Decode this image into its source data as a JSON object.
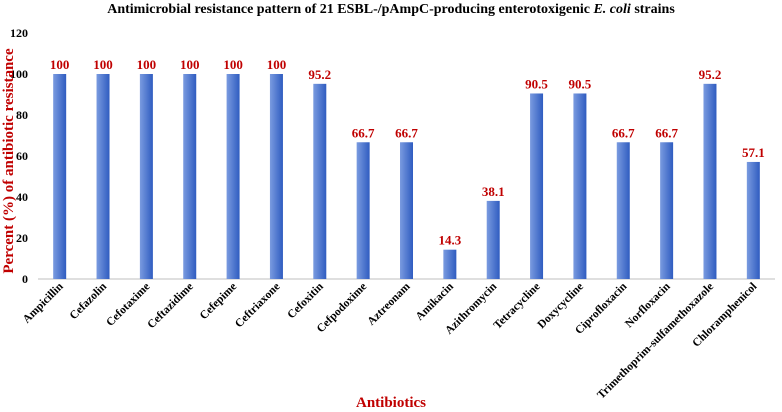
{
  "chart_data": {
    "type": "bar",
    "title_main": "Antimicrobial resistance pattern of 21 ESBL-/pAmpC-producing enterotoxigenic ",
    "title_italic": "E. coli",
    "title_end": " strains",
    "xlabel": "Antibiotics",
    "ylabel": "Percent (%) of antibiotic resistance",
    "ylim": [
      0,
      120
    ],
    "yticks": [
      0,
      20,
      40,
      60,
      80,
      100,
      120
    ],
    "categories": [
      "Ampicillin",
      "Cefazolin",
      "Cefotaxime",
      "Ceftazidime",
      "Cefepime",
      "Ceftriaxone",
      "Cefoxitin",
      "Cefpodoxime",
      "Aztreonam",
      "Amikacin",
      "Azithromycin",
      "Tetracycline",
      "Doxycycline",
      "Ciprofloxacin",
      "Norfloxacin",
      "Trimethoprim-sulfamethoxazole",
      "Chloramphenicol"
    ],
    "values": [
      100,
      100,
      100,
      100,
      100,
      100,
      95.2,
      66.7,
      66.7,
      14.3,
      38.1,
      90.5,
      90.5,
      66.7,
      66.7,
      95.2,
      57.1
    ],
    "data_labels": [
      "100",
      "100",
      "100",
      "100",
      "100",
      "100",
      "95.2",
      "66.7",
      "66.7",
      "14.3",
      "38.1",
      "90.5",
      "90.5",
      "66.7",
      "66.7",
      "95.2",
      "57.1"
    ],
    "grid": false,
    "legend": "none",
    "colors": {
      "bar_light": "#7a9be0",
      "bar_dark": "#2f5cc0",
      "label": "#c00000",
      "axis": "#bfbfbf"
    }
  }
}
